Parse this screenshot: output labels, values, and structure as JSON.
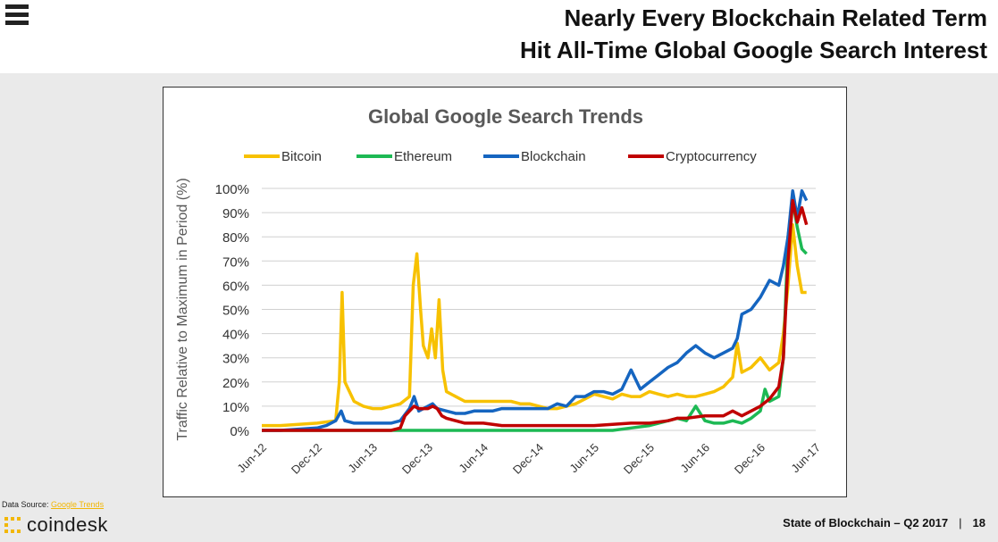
{
  "header": {
    "title_line1": "Nearly Every Blockchain Related Term",
    "title_line2": "Hit All-Time Global Google Search Interest"
  },
  "source": {
    "prefix": "Data Source: ",
    "link": "Google Trends"
  },
  "brand": {
    "name": "coindesk"
  },
  "footer": {
    "text": "State of Blockchain – Q2 2017",
    "separator": "|",
    "page": "18"
  },
  "colors": {
    "bitcoin": "#f7c100",
    "ethereum": "#1db954",
    "blockchain": "#1565c0",
    "cryptocurrency": "#c00000"
  },
  "chart_data": {
    "type": "line",
    "title": "Global Google Search Trends",
    "ylabel": "Traffic Relative to Maximum in Period (%)",
    "xlabel": "",
    "ylim": [
      0,
      100
    ],
    "yticks": [
      "0%",
      "10%",
      "20%",
      "30%",
      "40%",
      "50%",
      "60%",
      "70%",
      "80%",
      "90%",
      "100%"
    ],
    "xticks": [
      "Jun-12",
      "Dec-12",
      "Jun-13",
      "Dec-13",
      "Jun-14",
      "Dec-14",
      "Jun-15",
      "Dec-15",
      "Jun-16",
      "Dec-16",
      "Jun-17"
    ],
    "x_range": [
      0,
      60
    ],
    "legend": "top",
    "series": [
      {
        "name": "Bitcoin",
        "color": "#f7c100",
        "points": [
          [
            0,
            2
          ],
          [
            2,
            2
          ],
          [
            4,
            2.5
          ],
          [
            6,
            3
          ],
          [
            8,
            4
          ],
          [
            8.4,
            20
          ],
          [
            8.7,
            57
          ],
          [
            9,
            20
          ],
          [
            10,
            12
          ],
          [
            11,
            10
          ],
          [
            12,
            9
          ],
          [
            13,
            9
          ],
          [
            14,
            10
          ],
          [
            15,
            11
          ],
          [
            16,
            14
          ],
          [
            16.4,
            60
          ],
          [
            16.8,
            73
          ],
          [
            17.2,
            50
          ],
          [
            17.5,
            35
          ],
          [
            18,
            30
          ],
          [
            18.4,
            42
          ],
          [
            18.8,
            30
          ],
          [
            19.2,
            54
          ],
          [
            19.6,
            25
          ],
          [
            20,
            16
          ],
          [
            21,
            14
          ],
          [
            22,
            12
          ],
          [
            23,
            12
          ],
          [
            24,
            12
          ],
          [
            25,
            12
          ],
          [
            26,
            12
          ],
          [
            27,
            12
          ],
          [
            28,
            11
          ],
          [
            29,
            11
          ],
          [
            30,
            10
          ],
          [
            31,
            9
          ],
          [
            32,
            9
          ],
          [
            33,
            10
          ],
          [
            34,
            11
          ],
          [
            35,
            13
          ],
          [
            36,
            15
          ],
          [
            37,
            14
          ],
          [
            38,
            13
          ],
          [
            39,
            15
          ],
          [
            40,
            14
          ],
          [
            41,
            14
          ],
          [
            42,
            16
          ],
          [
            43,
            15
          ],
          [
            44,
            14
          ],
          [
            45,
            15
          ],
          [
            46,
            14
          ],
          [
            47,
            14
          ],
          [
            48,
            15
          ],
          [
            49,
            16
          ],
          [
            50,
            18
          ],
          [
            51,
            22
          ],
          [
            51.5,
            36
          ],
          [
            52,
            24
          ],
          [
            53,
            26
          ],
          [
            54,
            30
          ],
          [
            55,
            25
          ],
          [
            56,
            28
          ],
          [
            56.5,
            40
          ],
          [
            57,
            60
          ],
          [
            57.5,
            85
          ],
          [
            58,
            68
          ],
          [
            58.5,
            57
          ],
          [
            59,
            57
          ]
        ]
      },
      {
        "name": "Ethereum",
        "color": "#1db954",
        "points": [
          [
            0,
            0
          ],
          [
            38,
            0
          ],
          [
            40,
            1
          ],
          [
            42,
            2
          ],
          [
            43,
            3
          ],
          [
            44,
            4
          ],
          [
            45,
            5
          ],
          [
            46,
            4
          ],
          [
            47,
            10
          ],
          [
            48,
            4
          ],
          [
            49,
            3
          ],
          [
            50,
            3
          ],
          [
            51,
            4
          ],
          [
            52,
            3
          ],
          [
            53,
            5
          ],
          [
            54,
            8
          ],
          [
            54.5,
            17
          ],
          [
            55,
            12
          ],
          [
            56,
            14
          ],
          [
            56.5,
            30
          ],
          [
            57,
            80
          ],
          [
            57.5,
            95
          ],
          [
            58,
            84
          ],
          [
            58.5,
            75
          ],
          [
            59,
            73
          ]
        ]
      },
      {
        "name": "Blockchain",
        "color": "#1565c0",
        "points": [
          [
            0,
            0
          ],
          [
            2,
            0
          ],
          [
            4,
            0.5
          ],
          [
            6,
            1
          ],
          [
            7,
            2
          ],
          [
            8,
            4
          ],
          [
            8.6,
            8
          ],
          [
            9,
            4
          ],
          [
            10,
            3
          ],
          [
            11,
            3
          ],
          [
            12,
            3
          ],
          [
            13,
            3
          ],
          [
            14,
            3
          ],
          [
            15,
            4
          ],
          [
            16,
            9
          ],
          [
            16.5,
            14
          ],
          [
            17,
            8
          ],
          [
            18,
            10
          ],
          [
            18.5,
            11
          ],
          [
            19,
            9
          ],
          [
            20,
            8
          ],
          [
            21,
            7
          ],
          [
            22,
            7
          ],
          [
            23,
            8
          ],
          [
            24,
            8
          ],
          [
            25,
            8
          ],
          [
            26,
            9
          ],
          [
            27,
            9
          ],
          [
            28,
            9
          ],
          [
            29,
            9
          ],
          [
            30,
            9
          ],
          [
            31,
            9
          ],
          [
            32,
            11
          ],
          [
            33,
            10
          ],
          [
            34,
            14
          ],
          [
            35,
            14
          ],
          [
            36,
            16
          ],
          [
            37,
            16
          ],
          [
            38,
            15
          ],
          [
            39,
            17
          ],
          [
            40,
            25
          ],
          [
            41,
            17
          ],
          [
            42,
            20
          ],
          [
            43,
            23
          ],
          [
            44,
            26
          ],
          [
            45,
            28
          ],
          [
            46,
            32
          ],
          [
            47,
            35
          ],
          [
            48,
            32
          ],
          [
            49,
            30
          ],
          [
            50,
            32
          ],
          [
            51,
            34
          ],
          [
            51.5,
            38
          ],
          [
            52,
            48
          ],
          [
            53,
            50
          ],
          [
            54,
            55
          ],
          [
            55,
            62
          ],
          [
            56,
            60
          ],
          [
            56.5,
            68
          ],
          [
            57,
            80
          ],
          [
            57.5,
            99
          ],
          [
            58,
            88
          ],
          [
            58.5,
            99
          ],
          [
            59,
            95
          ]
        ]
      },
      {
        "name": "Cryptocurrency",
        "color": "#c00000",
        "points": [
          [
            0,
            0
          ],
          [
            8,
            0
          ],
          [
            12,
            0
          ],
          [
            14,
            0
          ],
          [
            15,
            1
          ],
          [
            15.5,
            6
          ],
          [
            16,
            8
          ],
          [
            16.5,
            10
          ],
          [
            17,
            9
          ],
          [
            18,
            9
          ],
          [
            18.5,
            10
          ],
          [
            19,
            9
          ],
          [
            19.5,
            6
          ],
          [
            20,
            5
          ],
          [
            21,
            4
          ],
          [
            22,
            3
          ],
          [
            24,
            3
          ],
          [
            26,
            2
          ],
          [
            30,
            2
          ],
          [
            32,
            2
          ],
          [
            34,
            2
          ],
          [
            36,
            2
          ],
          [
            38,
            2.5
          ],
          [
            40,
            3
          ],
          [
            42,
            3
          ],
          [
            44,
            4
          ],
          [
            45,
            5
          ],
          [
            46,
            5
          ],
          [
            48,
            6
          ],
          [
            50,
            6
          ],
          [
            51,
            8
          ],
          [
            52,
            6
          ],
          [
            53,
            8
          ],
          [
            54,
            10
          ],
          [
            55,
            13
          ],
          [
            56,
            18
          ],
          [
            56.5,
            30
          ],
          [
            57,
            70
          ],
          [
            57.5,
            95
          ],
          [
            58,
            86
          ],
          [
            58.5,
            92
          ],
          [
            59,
            85
          ]
        ]
      }
    ]
  }
}
